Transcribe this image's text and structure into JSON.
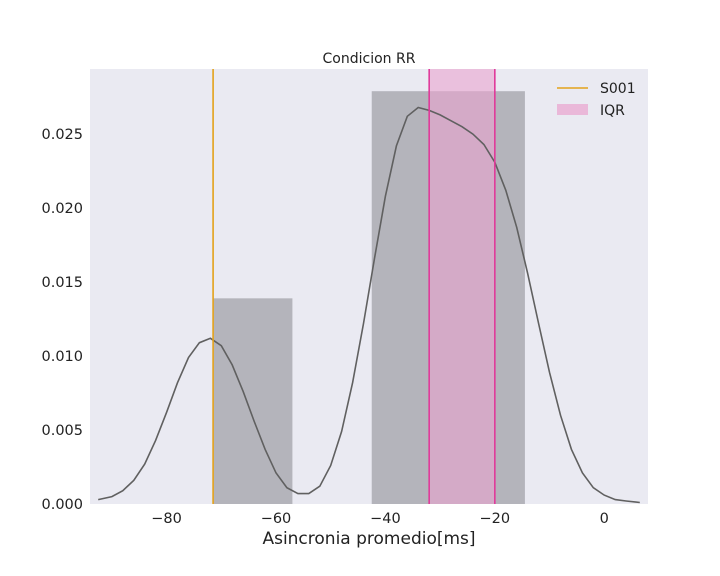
{
  "chart_data": {
    "type": "histogram",
    "title": "Condicion RR",
    "xlabel": "Asincronia promedio[ms]",
    "ylabel": "",
    "xlim": [
      -94,
      8
    ],
    "ylim": [
      0,
      0.0294
    ],
    "xticks": [
      -80,
      -60,
      -40,
      -20,
      0
    ],
    "xtick_labels": [
      "−80",
      "−60",
      "−40",
      "−20",
      "0"
    ],
    "yticks": [
      0,
      0.005,
      0.01,
      0.015,
      0.02,
      0.025
    ],
    "ytick_labels": [
      "0.000",
      "0.005",
      "0.010",
      "0.015",
      "0.020",
      "0.025"
    ],
    "grid": false,
    "legend_position": "top-right",
    "histogram_bins": [
      {
        "x0": -71.5,
        "x1": -57.0,
        "density": 0.0139
      },
      {
        "x0": -57.0,
        "x1": -42.5,
        "density": 0.0
      },
      {
        "x0": -42.5,
        "x1": -14.5,
        "density": 0.0279
      }
    ],
    "kde_curve": {
      "x": [
        -92.5,
        -90,
        -88,
        -86,
        -84,
        -82,
        -80,
        -78,
        -76,
        -74,
        -72,
        -70,
        -68,
        -66,
        -64,
        -62,
        -60,
        -58,
        -56,
        -54,
        -52,
        -50,
        -48,
        -46,
        -44,
        -42,
        -40,
        -38,
        -36,
        -34,
        -32,
        -30,
        -28,
        -26,
        -24,
        -22,
        -20,
        -18,
        -16,
        -14,
        -12,
        -10,
        -8,
        -6,
        -4,
        -2,
        0,
        2,
        4,
        6.5
      ],
      "y": [
        0.0003,
        0.0005,
        0.0009,
        0.0016,
        0.0027,
        0.0043,
        0.0062,
        0.0082,
        0.0099,
        0.0109,
        0.0112,
        0.0107,
        0.0094,
        0.0076,
        0.0056,
        0.0037,
        0.0021,
        0.0011,
        0.0007,
        0.0007,
        0.0012,
        0.0026,
        0.0049,
        0.0082,
        0.0122,
        0.0166,
        0.0208,
        0.0242,
        0.0262,
        0.0268,
        0.0266,
        0.0263,
        0.0259,
        0.0255,
        0.025,
        0.0243,
        0.0231,
        0.0212,
        0.0187,
        0.0156,
        0.0122,
        0.0089,
        0.006,
        0.0037,
        0.0021,
        0.0011,
        0.0006,
        0.0003,
        0.0002,
        0.0001
      ]
    },
    "subject_line": {
      "name": "S001",
      "x": -71.5,
      "color": "#e3a21a"
    },
    "iqr": {
      "name": "IQR",
      "x0": -32.0,
      "x1": -20.0,
      "line_color": "#e0399a",
      "fill_color": "#e9a3cf"
    },
    "colors": {
      "plot_background": "#eaeaf2",
      "histogram_fill": "#a2a2a8",
      "kde_line": "#606060"
    }
  }
}
